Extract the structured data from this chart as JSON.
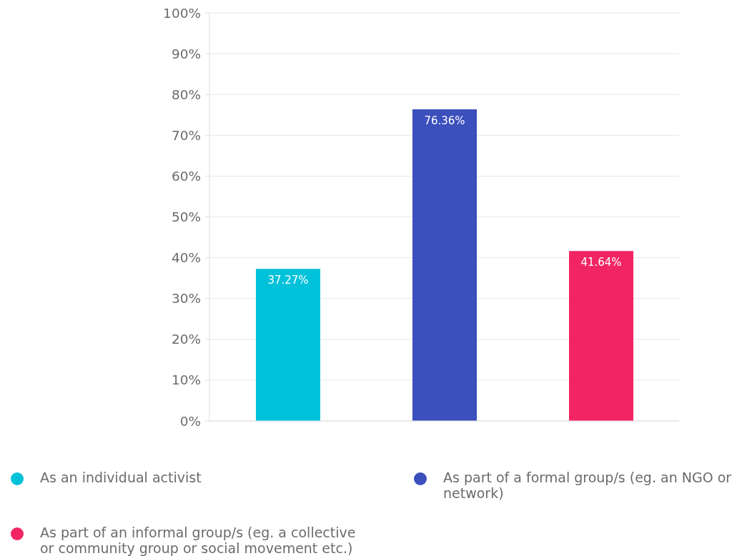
{
  "chart_data": {
    "type": "bar",
    "categories": [
      null,
      null,
      null
    ],
    "series": [
      {
        "name": "As an individual activist",
        "color": "#00c1da",
        "values": [
          37.27,
          null,
          null
        ],
        "value_labels": [
          "37.27%",
          null,
          null
        ]
      },
      {
        "name": "As part of a formal group/s (eg. an NGO or network)",
        "color": "#3b4fbd",
        "values": [
          null,
          76.36,
          null
        ],
        "value_labels": [
          null,
          "76.36%",
          null
        ]
      },
      {
        "name": "As part of an informal group/s (eg. a collective or community group or social movement etc.)",
        "color": "#f22563",
        "values": [
          null,
          null,
          41.64
        ],
        "value_labels": [
          null,
          null,
          "41.64%"
        ]
      }
    ],
    "ylim": [
      0,
      100
    ],
    "yticks": [
      {
        "value": 0,
        "label": "0%"
      },
      {
        "value": 10,
        "label": "10%"
      },
      {
        "value": 20,
        "label": "20%"
      },
      {
        "value": 30,
        "label": "30%"
      },
      {
        "value": 40,
        "label": "40%"
      },
      {
        "value": 50,
        "label": "50%"
      },
      {
        "value": 60,
        "label": "60%"
      },
      {
        "value": 70,
        "label": "70%"
      },
      {
        "value": 80,
        "label": "80%"
      },
      {
        "value": 90,
        "label": "90%"
      },
      {
        "value": 100,
        "label": "100%"
      }
    ],
    "grid": "y",
    "legend": "bottom",
    "tick_labels": "y"
  }
}
